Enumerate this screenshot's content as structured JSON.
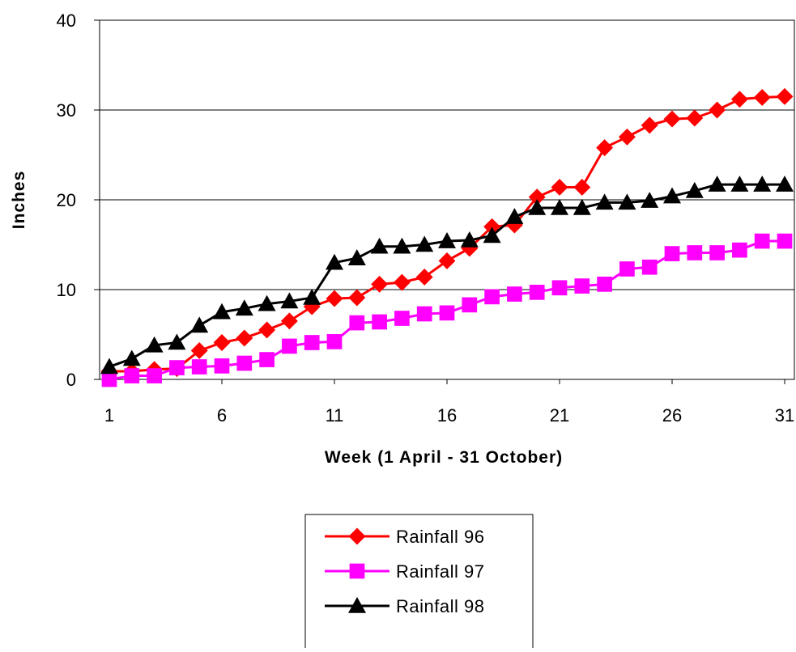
{
  "chart_data": {
    "type": "line",
    "title": "",
    "xlabel": "Week (1 April - 31 October)",
    "ylabel": "Inches",
    "xlim": [
      1,
      31
    ],
    "ylim": [
      0,
      40
    ],
    "x_ticks": [
      1,
      6,
      11,
      16,
      21,
      26,
      31
    ],
    "y_ticks": [
      0,
      10,
      20,
      30,
      40
    ],
    "grid": "horizontal",
    "legend_position": "bottom-center",
    "x": [
      1,
      2,
      3,
      4,
      5,
      6,
      7,
      8,
      9,
      10,
      11,
      12,
      13,
      14,
      15,
      16,
      17,
      18,
      19,
      20,
      21,
      22,
      23,
      24,
      25,
      26,
      27,
      28,
      29,
      30,
      31
    ],
    "series": [
      {
        "name": "Rainfall 96",
        "color": "#ff0000",
        "marker": "diamond",
        "values": [
          0.9,
          0.9,
          1.1,
          1.2,
          3.2,
          4.1,
          4.6,
          5.5,
          6.5,
          8.1,
          9.0,
          9.1,
          10.6,
          10.8,
          11.4,
          13.2,
          14.6,
          17.0,
          17.2,
          20.3,
          21.4,
          21.4,
          25.8,
          27.0,
          28.3,
          29.0,
          29.1,
          30.0,
          31.2,
          31.4,
          31.5
        ]
      },
      {
        "name": "Rainfall 97",
        "color": "#ff00ff",
        "marker": "square",
        "values": [
          0.0,
          0.4,
          0.4,
          1.3,
          1.4,
          1.5,
          1.8,
          2.2,
          3.7,
          4.1,
          4.2,
          6.3,
          6.4,
          6.8,
          7.3,
          7.4,
          8.3,
          9.2,
          9.5,
          9.7,
          10.2,
          10.4,
          10.6,
          12.3,
          12.5,
          14.0,
          14.1,
          14.1,
          14.4,
          15.4,
          15.4
        ]
      },
      {
        "name": "Rainfall 98",
        "color": "#000000",
        "marker": "triangle",
        "values": [
          1.4,
          2.3,
          3.8,
          4.1,
          6.0,
          7.5,
          7.9,
          8.4,
          8.7,
          9.1,
          13.0,
          13.5,
          14.8,
          14.8,
          15.0,
          15.4,
          15.5,
          16.0,
          18.1,
          19.1,
          19.1,
          19.1,
          19.7,
          19.7,
          19.9,
          20.4,
          21.0,
          21.7,
          21.7,
          21.7,
          21.7
        ]
      }
    ]
  }
}
